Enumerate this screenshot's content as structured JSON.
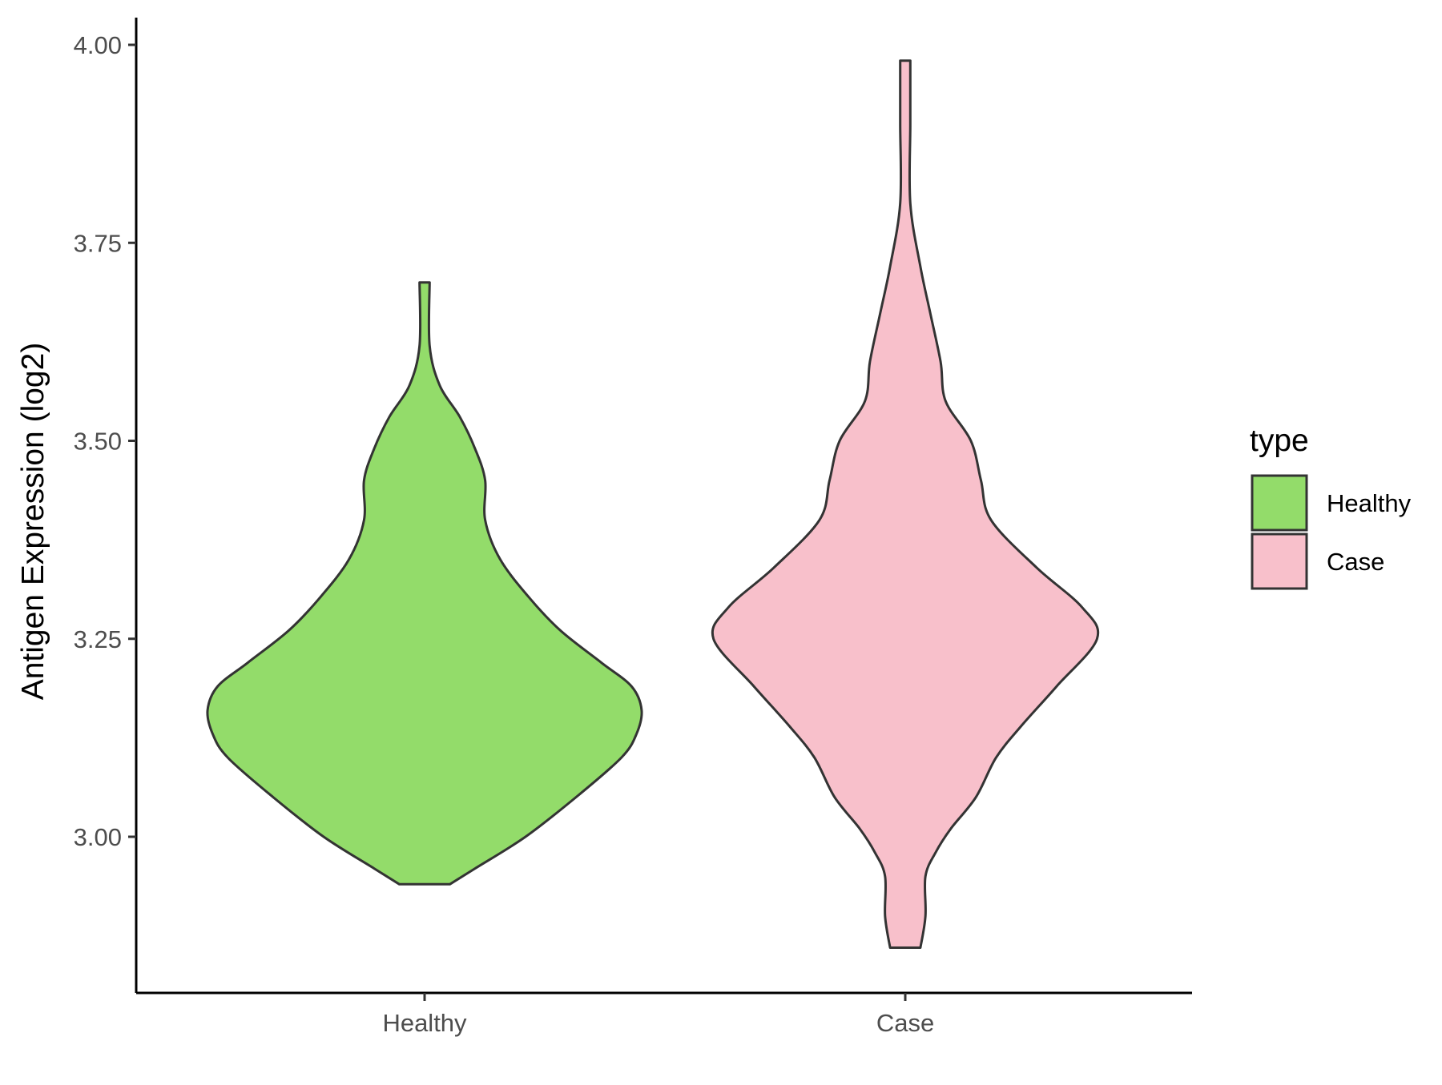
{
  "chart_data": {
    "type": "violin",
    "title": "",
    "xlabel": "",
    "ylabel": "Antigen Expression (log2)",
    "categories": [
      "Healthy",
      "Case"
    ],
    "ylim": [
      2.8,
      4.03
    ],
    "yticks": [
      {
        "value": 3.0,
        "label": "3.00"
      },
      {
        "value": 3.25,
        "label": "3.25"
      },
      {
        "value": 3.5,
        "label": "3.50"
      },
      {
        "value": 3.75,
        "label": "3.75"
      },
      {
        "value": 4.0,
        "label": "4.00"
      }
    ],
    "grid": false,
    "legend": {
      "title": "type",
      "placement": "right",
      "items": [
        {
          "label": "Healthy",
          "color": "#93DC6A"
        },
        {
          "label": "Case",
          "color": "#F8C0CB"
        }
      ]
    },
    "series": [
      {
        "category": "Healthy",
        "color": "#93DC6A",
        "y_min": 2.94,
        "y_max": 3.7,
        "density_profile": [
          {
            "y": 2.94,
            "halfwidth": 0.05
          },
          {
            "y": 2.96,
            "halfwidth": 0.1
          },
          {
            "y": 3.0,
            "halfwidth": 0.2
          },
          {
            "y": 3.05,
            "halfwidth": 0.3
          },
          {
            "y": 3.1,
            "halfwidth": 0.39
          },
          {
            "y": 3.13,
            "halfwidth": 0.42
          },
          {
            "y": 3.16,
            "halfwidth": 0.43
          },
          {
            "y": 3.19,
            "halfwidth": 0.41
          },
          {
            "y": 3.22,
            "halfwidth": 0.35
          },
          {
            "y": 3.26,
            "halfwidth": 0.27
          },
          {
            "y": 3.3,
            "halfwidth": 0.21
          },
          {
            "y": 3.35,
            "halfwidth": 0.15
          },
          {
            "y": 3.4,
            "halfwidth": 0.12
          },
          {
            "y": 3.45,
            "halfwidth": 0.12
          },
          {
            "y": 3.49,
            "halfwidth": 0.1
          },
          {
            "y": 3.53,
            "halfwidth": 0.07
          },
          {
            "y": 3.57,
            "halfwidth": 0.03
          },
          {
            "y": 3.62,
            "halfwidth": 0.01
          },
          {
            "y": 3.7,
            "halfwidth": 0.01
          }
        ]
      },
      {
        "category": "Case",
        "color": "#F8C0CB",
        "y_min": 2.86,
        "y_max": 3.98,
        "density_profile": [
          {
            "y": 2.86,
            "halfwidth": 0.03
          },
          {
            "y": 2.9,
            "halfwidth": 0.04
          },
          {
            "y": 2.95,
            "halfwidth": 0.04
          },
          {
            "y": 2.98,
            "halfwidth": 0.06
          },
          {
            "y": 3.01,
            "halfwidth": 0.09
          },
          {
            "y": 3.05,
            "halfwidth": 0.14
          },
          {
            "y": 3.1,
            "halfwidth": 0.18
          },
          {
            "y": 3.14,
            "halfwidth": 0.23
          },
          {
            "y": 3.19,
            "halfwidth": 0.3
          },
          {
            "y": 3.25,
            "halfwidth": 0.38
          },
          {
            "y": 3.29,
            "halfwidth": 0.35
          },
          {
            "y": 3.34,
            "halfwidth": 0.26
          },
          {
            "y": 3.4,
            "halfwidth": 0.17
          },
          {
            "y": 3.45,
            "halfwidth": 0.15
          },
          {
            "y": 3.5,
            "halfwidth": 0.13
          },
          {
            "y": 3.55,
            "halfwidth": 0.08
          },
          {
            "y": 3.6,
            "halfwidth": 0.07
          },
          {
            "y": 3.66,
            "halfwidth": 0.05
          },
          {
            "y": 3.72,
            "halfwidth": 0.03
          },
          {
            "y": 3.8,
            "halfwidth": 0.01
          },
          {
            "y": 3.9,
            "halfwidth": 0.01
          },
          {
            "y": 3.98,
            "halfwidth": 0.01
          }
        ]
      }
    ]
  }
}
